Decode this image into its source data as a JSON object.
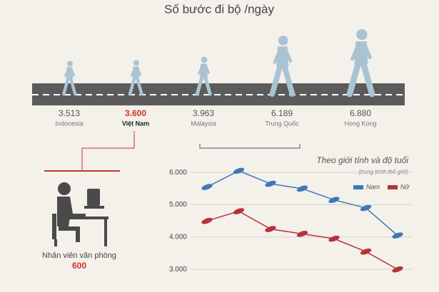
{
  "chart_data": [
    {
      "type": "pictogram",
      "title": "Số bước đi bộ /ngày",
      "categories": [
        "Indonesia",
        "Việt Nam",
        "Malaysia",
        "Trung Quốc",
        "Hong Kong"
      ],
      "values": [
        3513,
        3600,
        3963,
        6189,
        6880
      ],
      "value_labels": [
        "3.513",
        "3.600",
        "3.963",
        "6.189",
        "6.880"
      ],
      "label_colors": [
        "#555555",
        "#d0312d",
        "#555555",
        "#555555",
        "#555555"
      ],
      "color": "#a9c3d3"
    },
    {
      "type": "line",
      "title": "Theo giới tính và độ tuổi",
      "subtitle": "(trung bình thế giới)",
      "categories": [
        null,
        null,
        null,
        null,
        null,
        null,
        null
      ],
      "series": [
        {
          "name": "Nam",
          "color": "#3d78b8",
          "values": [
            5550,
            6050,
            5650,
            5500,
            5150,
            4900,
            4050
          ]
        },
        {
          "name": "Nữ",
          "color": "#b5323a",
          "values": [
            4500,
            4800,
            4250,
            4100,
            3950,
            3550,
            3000
          ]
        }
      ],
      "ylim": [
        2300,
        6400
      ],
      "yticks": [
        {
          "value": 3000,
          "label": "3.000"
        },
        {
          "value": 4000,
          "label": "4.000"
        },
        {
          "value": 5000,
          "label": "5.000"
        },
        {
          "value": 6000,
          "label": "6.000"
        }
      ],
      "grid": true,
      "legend": "top-right"
    }
  ],
  "office": {
    "label": "Nhân viên văn phòng",
    "value": "600"
  }
}
